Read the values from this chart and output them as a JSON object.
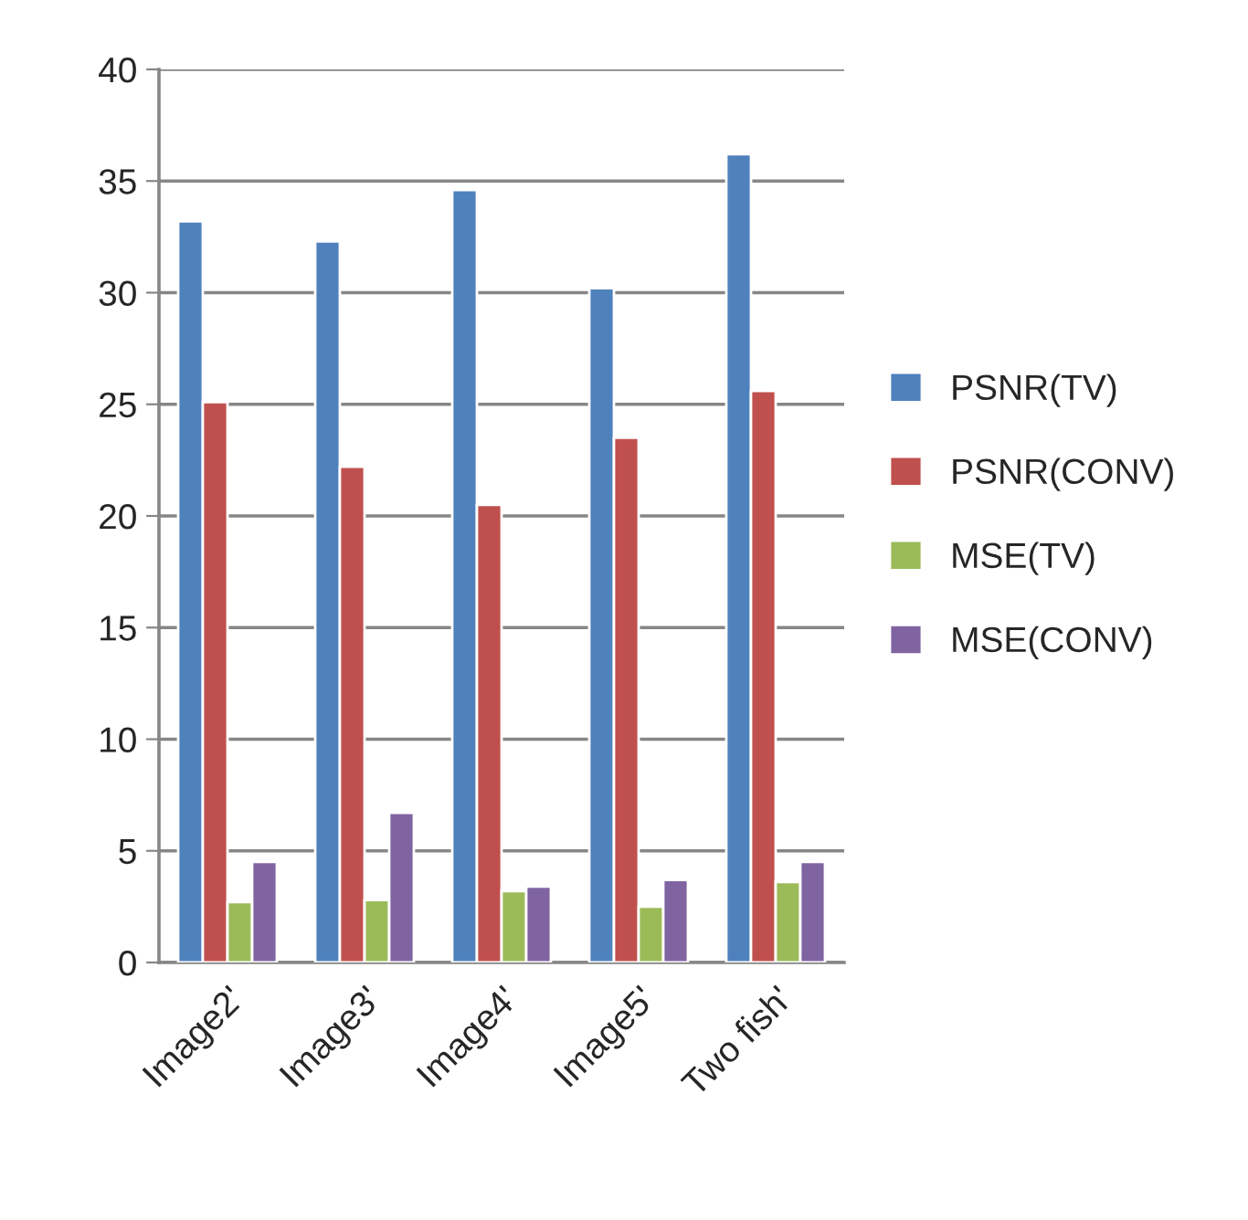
{
  "chart_data": {
    "type": "bar",
    "categories": [
      "Image2'",
      "Image3'",
      "Image4'",
      "Image5'",
      "Two fish'"
    ],
    "series": [
      {
        "name": "PSNR(TV)",
        "color": "#4f81bd",
        "values": [
          33.2,
          32.3,
          34.6,
          30.2,
          36.2
        ]
      },
      {
        "name": "PSNR(CONV)",
        "color": "#c0504d",
        "values": [
          25.1,
          22.2,
          20.5,
          23.5,
          25.6
        ]
      },
      {
        "name": "MSE(TV)",
        "color": "#9bbb59",
        "values": [
          2.7,
          2.8,
          3.2,
          2.5,
          3.6
        ]
      },
      {
        "name": "MSE(CONV)",
        "color": "#8064a2",
        "values": [
          4.5,
          6.7,
          3.4,
          3.7,
          4.5
        ]
      }
    ],
    "ylim": [
      0,
      40
    ],
    "yticks": [
      0,
      5,
      10,
      15,
      20,
      25,
      30,
      35,
      40
    ],
    "grid": "y",
    "legend": "right"
  }
}
